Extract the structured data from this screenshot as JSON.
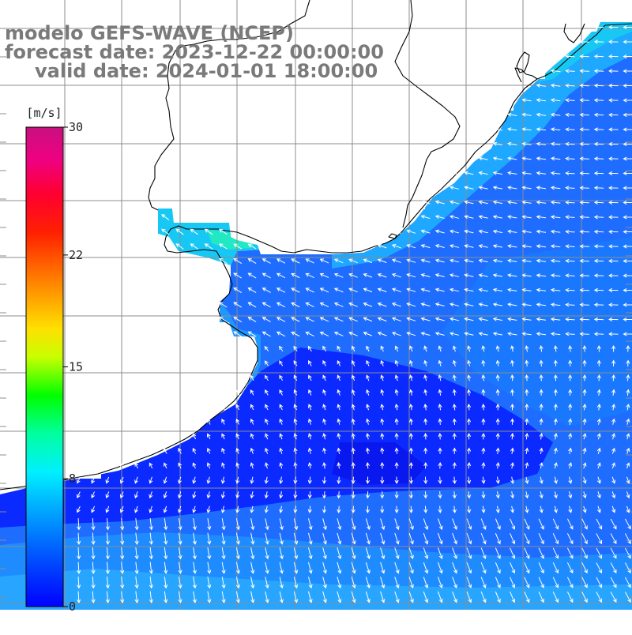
{
  "title": {
    "line1": "modelo GEFS-WAVE (NCEP)",
    "line2": "forecast date: 2023-12-22 00:00:00",
    "line3": "valid date: 2024-01-01 18:00:00"
  },
  "colorbar": {
    "unit": "[m/s]",
    "ticks": [
      {
        "value": 30,
        "label": "30"
      },
      {
        "value": 22,
        "label": "22"
      },
      {
        "value": 15,
        "label": "15"
      },
      {
        "value": 8,
        "label": "8"
      },
      {
        "value": 0,
        "label": "0"
      }
    ],
    "min": 0,
    "max": 30
  },
  "colors": {
    "land": "#ffffff",
    "grid": "#8c8c8c",
    "coast": "#000000",
    "arrow": "#ffffff",
    "title_text": "#7a7a7a",
    "ocean_deep_blue": "#0a2aff",
    "ocean_medium_blue": "#1e6dff",
    "ocean_light_blue": "#1ea8ff",
    "ocean_cyan": "#10d8f0",
    "ocean_teal": "#20e8c0"
  },
  "map": {
    "field": "wind speed",
    "units": "m/s",
    "region": "South Atlantic coast of southern Brazil, Uruguay and Argentina (Río de la Plata)"
  }
}
